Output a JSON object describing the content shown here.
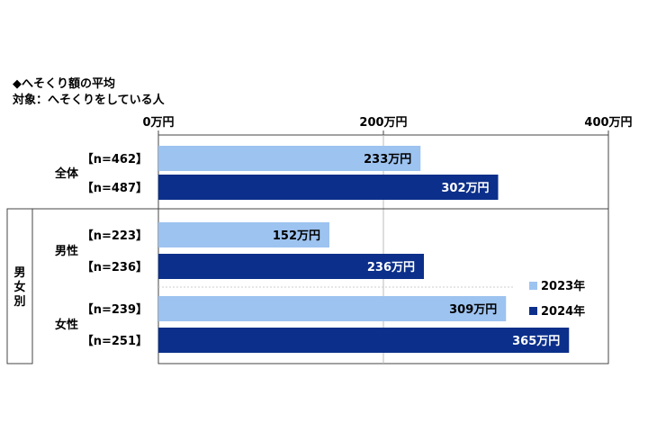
{
  "title": "◆へそくり額の平均",
  "subtitle": "対象：へそくりをしている人",
  "chart_data": {
    "type": "bar",
    "orientation": "horizontal",
    "unit": "万円",
    "xlim": [
      0,
      400
    ],
    "ticks": [
      {
        "value": 0,
        "label": "0万円"
      },
      {
        "value": 200,
        "label": "200万円"
      },
      {
        "value": 400,
        "label": "400万円"
      }
    ],
    "group_header": "男女別",
    "groups": [
      {
        "label": "全体",
        "rows": [
          {
            "series": "2023年",
            "n": "【n=462】",
            "value": 233,
            "label": "233万円"
          },
          {
            "series": "2024年",
            "n": "【n=487】",
            "value": 302,
            "label": "302万円"
          }
        ]
      },
      {
        "label": "男性",
        "rows": [
          {
            "series": "2023年",
            "n": "【n=223】",
            "value": 152,
            "label": "152万円"
          },
          {
            "series": "2024年",
            "n": "【n=236】",
            "value": 236,
            "label": "236万円"
          }
        ]
      },
      {
        "label": "女性",
        "rows": [
          {
            "series": "2023年",
            "n": "【n=239】",
            "value": 309,
            "label": "309万円"
          },
          {
            "series": "2024年",
            "n": "【n=251】",
            "value": 365,
            "label": "365万円"
          }
        ]
      }
    ],
    "legend": {
      "placement": "right",
      "items": [
        {
          "name": "2023年",
          "color": "#9dc3f0"
        },
        {
          "name": "2024年",
          "color": "#0b2f8a"
        }
      ]
    },
    "colors": {
      "2023年": "#9dc3f0",
      "2024年": "#0b2f8a",
      "label_on_light": "#000000",
      "label_on_dark": "#ffffff"
    }
  }
}
